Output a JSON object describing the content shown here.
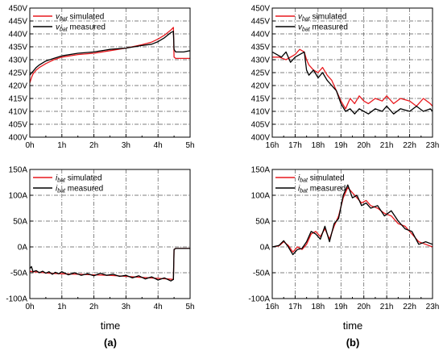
{
  "figure": {
    "xlabel_left": "time",
    "xlabel_right": "time",
    "caption_left": "(a)",
    "caption_right": "(b)"
  },
  "colors": {
    "simulated": "#e8191e",
    "measured": "#000000",
    "grid": "#555555"
  },
  "chart_data": [
    {
      "id": "a_top",
      "type": "line",
      "xlabel": "",
      "ylabel": "",
      "xlim": [
        0,
        5
      ],
      "ylim": [
        400,
        450
      ],
      "x_ticks": [
        0,
        1,
        2,
        3,
        4,
        5
      ],
      "x_tick_labels": [
        "0h",
        "1h",
        "2h",
        "3h",
        "4h",
        "5h"
      ],
      "y_ticks": [
        400,
        405,
        410,
        415,
        420,
        425,
        430,
        435,
        440,
        445,
        450
      ],
      "y_tick_labels": [
        "400V",
        "405V",
        "410V",
        "415V",
        "420V",
        "425V",
        "430V",
        "435V",
        "440V",
        "445V",
        "450V"
      ],
      "grid": true,
      "legend_position": "top-left",
      "series": [
        {
          "name": "vbat simulated",
          "legend_main": "v",
          "legend_sub": "bat",
          "legend_rest": " simulated",
          "color": "#e8191e",
          "x": [
            0,
            0.05,
            0.1,
            0.2,
            0.3,
            0.5,
            0.75,
            1,
            1.5,
            2,
            2.5,
            3,
            3.5,
            3.8,
            4,
            4.2,
            4.4,
            4.48,
            4.5,
            4.55,
            5
          ],
          "y": [
            421,
            423,
            424.5,
            426,
            427,
            428.5,
            430,
            431,
            432,
            432.5,
            433.5,
            434.5,
            435.8,
            436.8,
            438,
            439.5,
            441.5,
            442.5,
            431,
            430.5,
            430.5
          ]
        },
        {
          "name": "vbat measured",
          "legend_main": "v",
          "legend_sub": "bat",
          "legend_rest": " measured",
          "color": "#000000",
          "x": [
            0,
            0.05,
            0.1,
            0.2,
            0.3,
            0.5,
            0.75,
            1,
            1.5,
            2,
            2.5,
            3,
            3.5,
            3.8,
            4,
            4.2,
            4.4,
            4.48,
            4.5,
            4.55,
            4.8,
            5
          ],
          "y": [
            424,
            424.8,
            425.5,
            427,
            428,
            429.5,
            430.5,
            431.5,
            432.5,
            433,
            434,
            434.5,
            435.5,
            436,
            437,
            438.5,
            440.5,
            441,
            434,
            433,
            433,
            433.5
          ]
        }
      ]
    },
    {
      "id": "a_bottom",
      "type": "line",
      "xlabel": "time",
      "ylabel": "",
      "xlim": [
        0,
        5
      ],
      "ylim": [
        -100,
        150
      ],
      "x_ticks": [
        0,
        1,
        2,
        3,
        4,
        5
      ],
      "x_tick_labels": [
        "0h",
        "1h",
        "2h",
        "3h",
        "4h",
        "5h"
      ],
      "y_ticks": [
        -100,
        -50,
        0,
        50,
        100,
        150
      ],
      "y_tick_labels": [
        "-100A",
        "-50A",
        "0A",
        "50A",
        "100A",
        "150A"
      ],
      "grid": true,
      "legend_position": "top-left",
      "series": [
        {
          "name": "ibat simulated",
          "legend_main": "i",
          "legend_sub": "bat",
          "legend_rest": " simulated",
          "color": "#e8191e",
          "x": [
            0,
            0.1,
            0.3,
            0.6,
            1,
            1.5,
            2,
            2.5,
            3,
            3.5,
            4,
            4.3,
            4.48,
            4.5,
            4.55,
            5
          ],
          "y": [
            -47,
            -48,
            -49,
            -51,
            -52,
            -53,
            -54,
            -55,
            -57,
            -59,
            -61,
            -62,
            -63,
            -5,
            -3,
            -3
          ]
        },
        {
          "name": "ibat measured",
          "legend_main": "i",
          "legend_sub": "bat",
          "legend_rest": " measured",
          "color": "#000000",
          "x": [
            0,
            0.05,
            0.1,
            0.2,
            0.3,
            0.4,
            0.5,
            0.6,
            0.7,
            0.8,
            0.9,
            1,
            1.2,
            1.4,
            1.6,
            1.8,
            2,
            2.2,
            2.4,
            2.6,
            2.8,
            3,
            3.2,
            3.4,
            3.6,
            3.8,
            4,
            4.2,
            4.4,
            4.48,
            4.5,
            4.55,
            5
          ],
          "y": [
            -42,
            -38,
            -48,
            -46,
            -50,
            -47,
            -51,
            -48,
            -53,
            -49,
            -52,
            -48,
            -54,
            -50,
            -55,
            -52,
            -56,
            -51,
            -55,
            -53,
            -57,
            -55,
            -60,
            -56,
            -62,
            -58,
            -64,
            -60,
            -66,
            -63,
            -5,
            -3,
            -3
          ]
        }
      ]
    },
    {
      "id": "b_top",
      "type": "line",
      "xlabel": "",
      "ylabel": "",
      "xlim": [
        16,
        23
      ],
      "ylim": [
        400,
        450
      ],
      "x_ticks": [
        16,
        17,
        18,
        19,
        20,
        21,
        22,
        23
      ],
      "x_tick_labels": [
        "16h",
        "17h",
        "18h",
        "19h",
        "20h",
        "21h",
        "22h",
        "23h"
      ],
      "y_ticks": [
        400,
        405,
        410,
        415,
        420,
        425,
        430,
        435,
        440,
        445,
        450
      ],
      "y_tick_labels": [
        "400V",
        "405V",
        "410V",
        "415V",
        "420V",
        "425V",
        "430V",
        "435V",
        "440V",
        "445V",
        "450V"
      ],
      "grid": true,
      "legend_position": "top-left",
      "series": [
        {
          "name": "vbat simulated",
          "legend_main": "v",
          "legend_sub": "bat",
          "legend_rest": " simulated",
          "color": "#e8191e",
          "x": [
            16,
            16.3,
            16.6,
            16.8,
            17,
            17.2,
            17.4,
            17.5,
            17.6,
            17.8,
            18,
            18.2,
            18.4,
            18.6,
            18.8,
            19,
            19.2,
            19.4,
            19.6,
            19.8,
            20,
            20.2,
            20.5,
            20.8,
            21,
            21.3,
            21.6,
            22,
            22.3,
            22.6,
            22.9,
            23
          ],
          "y": [
            431,
            431,
            430,
            431,
            432,
            434,
            433,
            430,
            428,
            426,
            425,
            427,
            424,
            422,
            418,
            414,
            411,
            415,
            413,
            416,
            414,
            413,
            415,
            414,
            416,
            413,
            415,
            414,
            412,
            415,
            413,
            412
          ]
        },
        {
          "name": "vbat measured",
          "legend_main": "v",
          "legend_sub": "bat",
          "legend_rest": " measured",
          "color": "#000000",
          "x": [
            16,
            16.2,
            16.4,
            16.6,
            16.8,
            17,
            17.2,
            17.4,
            17.5,
            17.6,
            17.8,
            18,
            18.2,
            18.4,
            18.6,
            18.8,
            19,
            19.2,
            19.4,
            19.6,
            19.8,
            20,
            20.2,
            20.5,
            20.8,
            21,
            21.3,
            21.6,
            22,
            22.3,
            22.6,
            22.9,
            23
          ],
          "y": [
            433,
            432,
            431,
            433,
            429,
            431,
            432,
            433,
            426,
            424,
            426,
            423,
            425,
            422,
            420,
            418,
            413,
            410,
            411,
            409,
            411,
            410,
            409,
            411,
            410,
            412,
            409,
            411,
            410,
            412,
            410,
            411,
            410
          ]
        }
      ]
    },
    {
      "id": "b_bottom",
      "type": "line",
      "xlabel": "time",
      "ylabel": "",
      "xlim": [
        16,
        23
      ],
      "ylim": [
        -100,
        150
      ],
      "x_ticks": [
        16,
        17,
        18,
        19,
        20,
        21,
        22,
        23
      ],
      "x_tick_labels": [
        "16h",
        "17h",
        "18h",
        "19h",
        "20h",
        "21h",
        "22h",
        "23h"
      ],
      "y_ticks": [
        -100,
        -50,
        0,
        50,
        100,
        150
      ],
      "y_tick_labels": [
        "-100A",
        "-50A",
        "0A",
        "50A",
        "100A",
        "150A"
      ],
      "grid": true,
      "legend_position": "top-left",
      "series": [
        {
          "name": "ibat simulated",
          "legend_main": "i",
          "legend_sub": "bat",
          "legend_rest": " simulated",
          "color": "#e8191e",
          "x": [
            16,
            16.3,
            16.5,
            16.7,
            16.9,
            17.1,
            17.3,
            17.5,
            17.7,
            17.9,
            18.1,
            18.3,
            18.5,
            18.7,
            18.9,
            19.1,
            19.3,
            19.5,
            19.7,
            19.9,
            20.1,
            20.3,
            20.6,
            20.9,
            21.2,
            21.5,
            21.8,
            22.1,
            22.4,
            22.7,
            23
          ],
          "y": [
            0,
            2,
            10,
            3,
            -10,
            0,
            -5,
            5,
            25,
            30,
            20,
            35,
            15,
            40,
            60,
            95,
            115,
            105,
            95,
            85,
            90,
            80,
            75,
            65,
            60,
            45,
            40,
            25,
            10,
            5,
            0
          ]
        },
        {
          "name": "ibat measured",
          "legend_main": "i",
          "legend_sub": "bat",
          "legend_rest": " measured",
          "color": "#000000",
          "x": [
            16,
            16.3,
            16.5,
            16.7,
            16.9,
            17.1,
            17.3,
            17.5,
            17.7,
            17.9,
            18.1,
            18.3,
            18.5,
            18.7,
            18.9,
            19.1,
            19.3,
            19.5,
            19.7,
            19.9,
            20.1,
            20.3,
            20.6,
            20.9,
            21.2,
            21.5,
            21.8,
            22.1,
            22.4,
            22.7,
            23
          ],
          "y": [
            0,
            3,
            12,
            0,
            -15,
            -5,
            -3,
            10,
            30,
            25,
            15,
            40,
            10,
            45,
            55,
            100,
            120,
            95,
            100,
            80,
            85,
            75,
            80,
            60,
            70,
            50,
            35,
            30,
            5,
            10,
            5
          ]
        }
      ]
    }
  ]
}
